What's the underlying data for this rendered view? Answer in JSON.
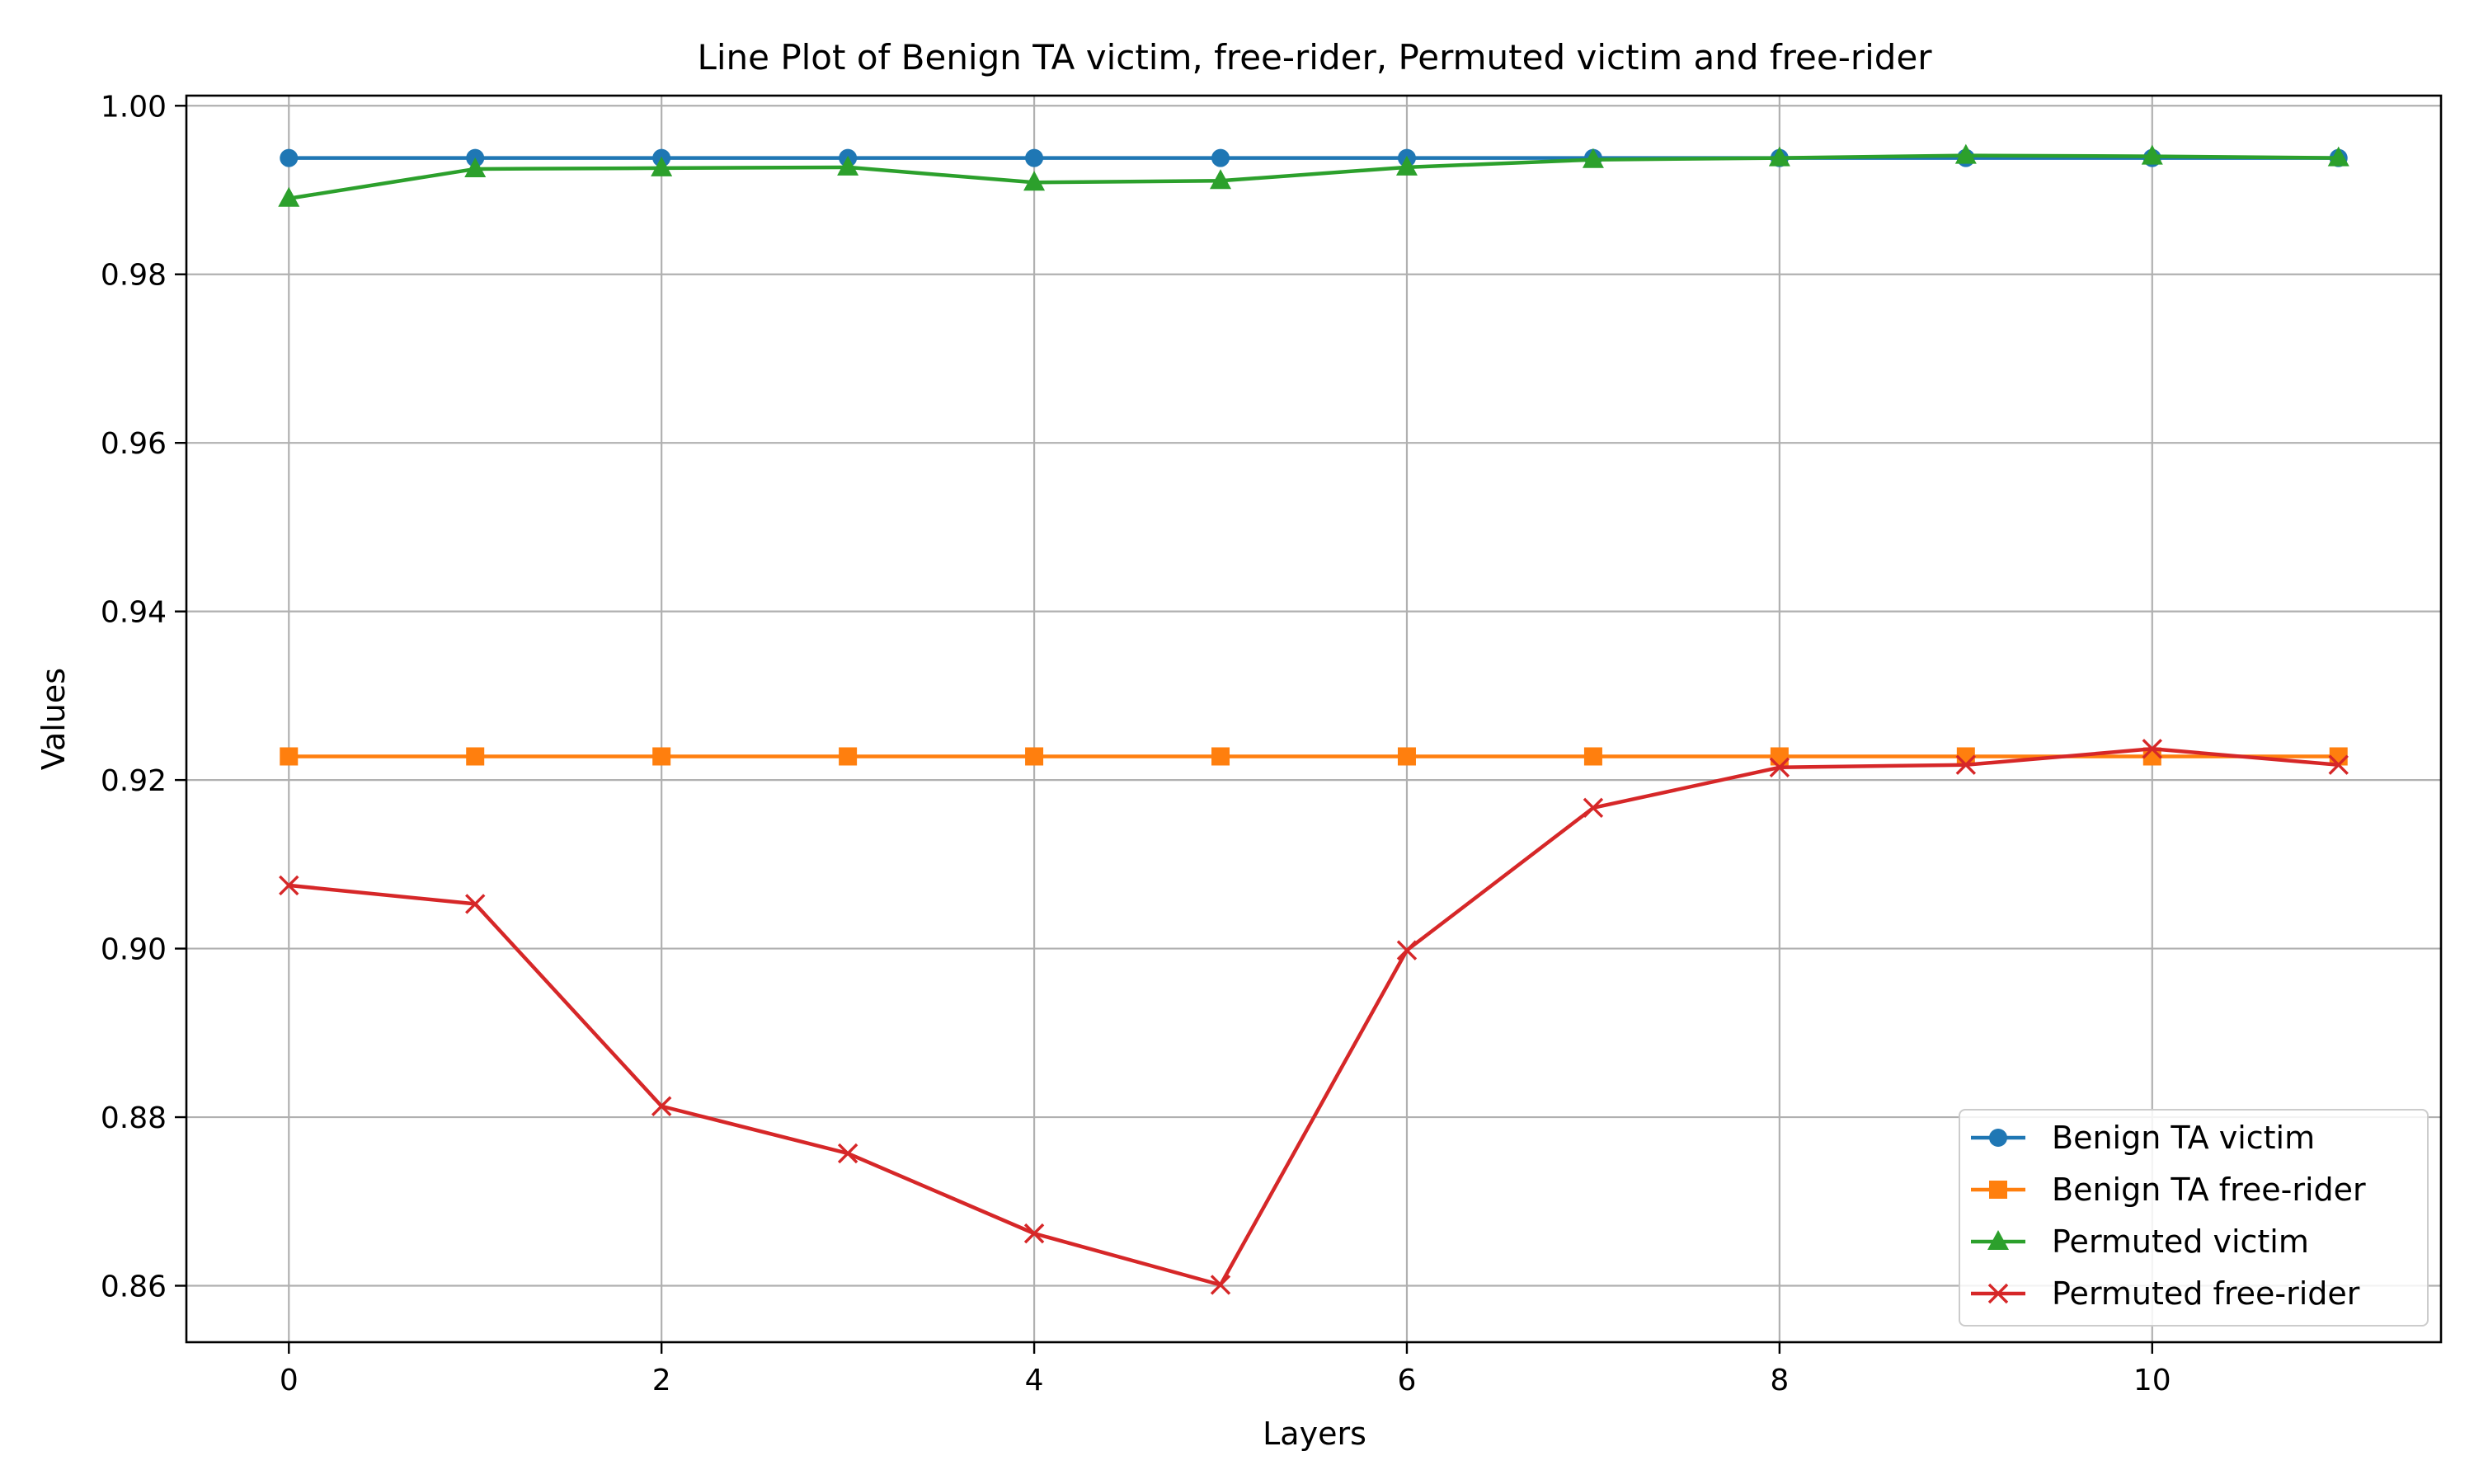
{
  "chart_data": {
    "type": "line",
    "title": "Line Plot of Benign TA victim, free-rider, Permuted victim and free-rider",
    "xlabel": "Layers",
    "ylabel": "Values",
    "x": [
      0,
      1,
      2,
      3,
      4,
      5,
      6,
      7,
      8,
      9,
      10,
      11
    ],
    "xlim": [
      -0.55,
      11.55
    ],
    "ylim": [
      0.8533,
      1.0012
    ],
    "xticks": [
      0,
      2,
      4,
      6,
      8,
      10
    ],
    "xtick_labels": [
      "0",
      "2",
      "4",
      "6",
      "8",
      "10"
    ],
    "yticks": [
      0.86,
      0.88,
      0.9,
      0.92,
      0.94,
      0.96,
      0.98,
      1.0
    ],
    "ytick_labels": [
      "0.86",
      "0.88",
      "0.90",
      "0.92",
      "0.94",
      "0.96",
      "0.98",
      "1.00"
    ],
    "grid": true,
    "legend_position": "bottom-right",
    "series": [
      {
        "name": "Benign TA victim",
        "color": "#1f77b4",
        "marker": "circle",
        "values": [
          0.9938,
          0.9938,
          0.9938,
          0.9938,
          0.9938,
          0.9938,
          0.9938,
          0.9938,
          0.9938,
          0.9938,
          0.9938,
          0.9938
        ]
      },
      {
        "name": "Benign TA free-rider",
        "color": "#ff7f0e",
        "marker": "square",
        "values": [
          0.9228,
          0.9228,
          0.9228,
          0.9228,
          0.9228,
          0.9228,
          0.9228,
          0.9228,
          0.9228,
          0.9228,
          0.9228,
          0.9228
        ]
      },
      {
        "name": "Permuted victim",
        "color": "#2ca02c",
        "marker": "triangle",
        "values": [
          0.989,
          0.9925,
          0.9926,
          0.9927,
          0.9909,
          0.9911,
          0.9927,
          0.9936,
          0.9938,
          0.9941,
          0.994,
          0.9938
        ]
      },
      {
        "name": "Permuted free-rider",
        "color": "#d62728",
        "marker": "x",
        "values": [
          0.9075,
          0.9053,
          0.8813,
          0.8757,
          0.8662,
          0.8601,
          0.8998,
          0.9167,
          0.9215,
          0.9218,
          0.9237,
          0.9218
        ]
      }
    ]
  }
}
